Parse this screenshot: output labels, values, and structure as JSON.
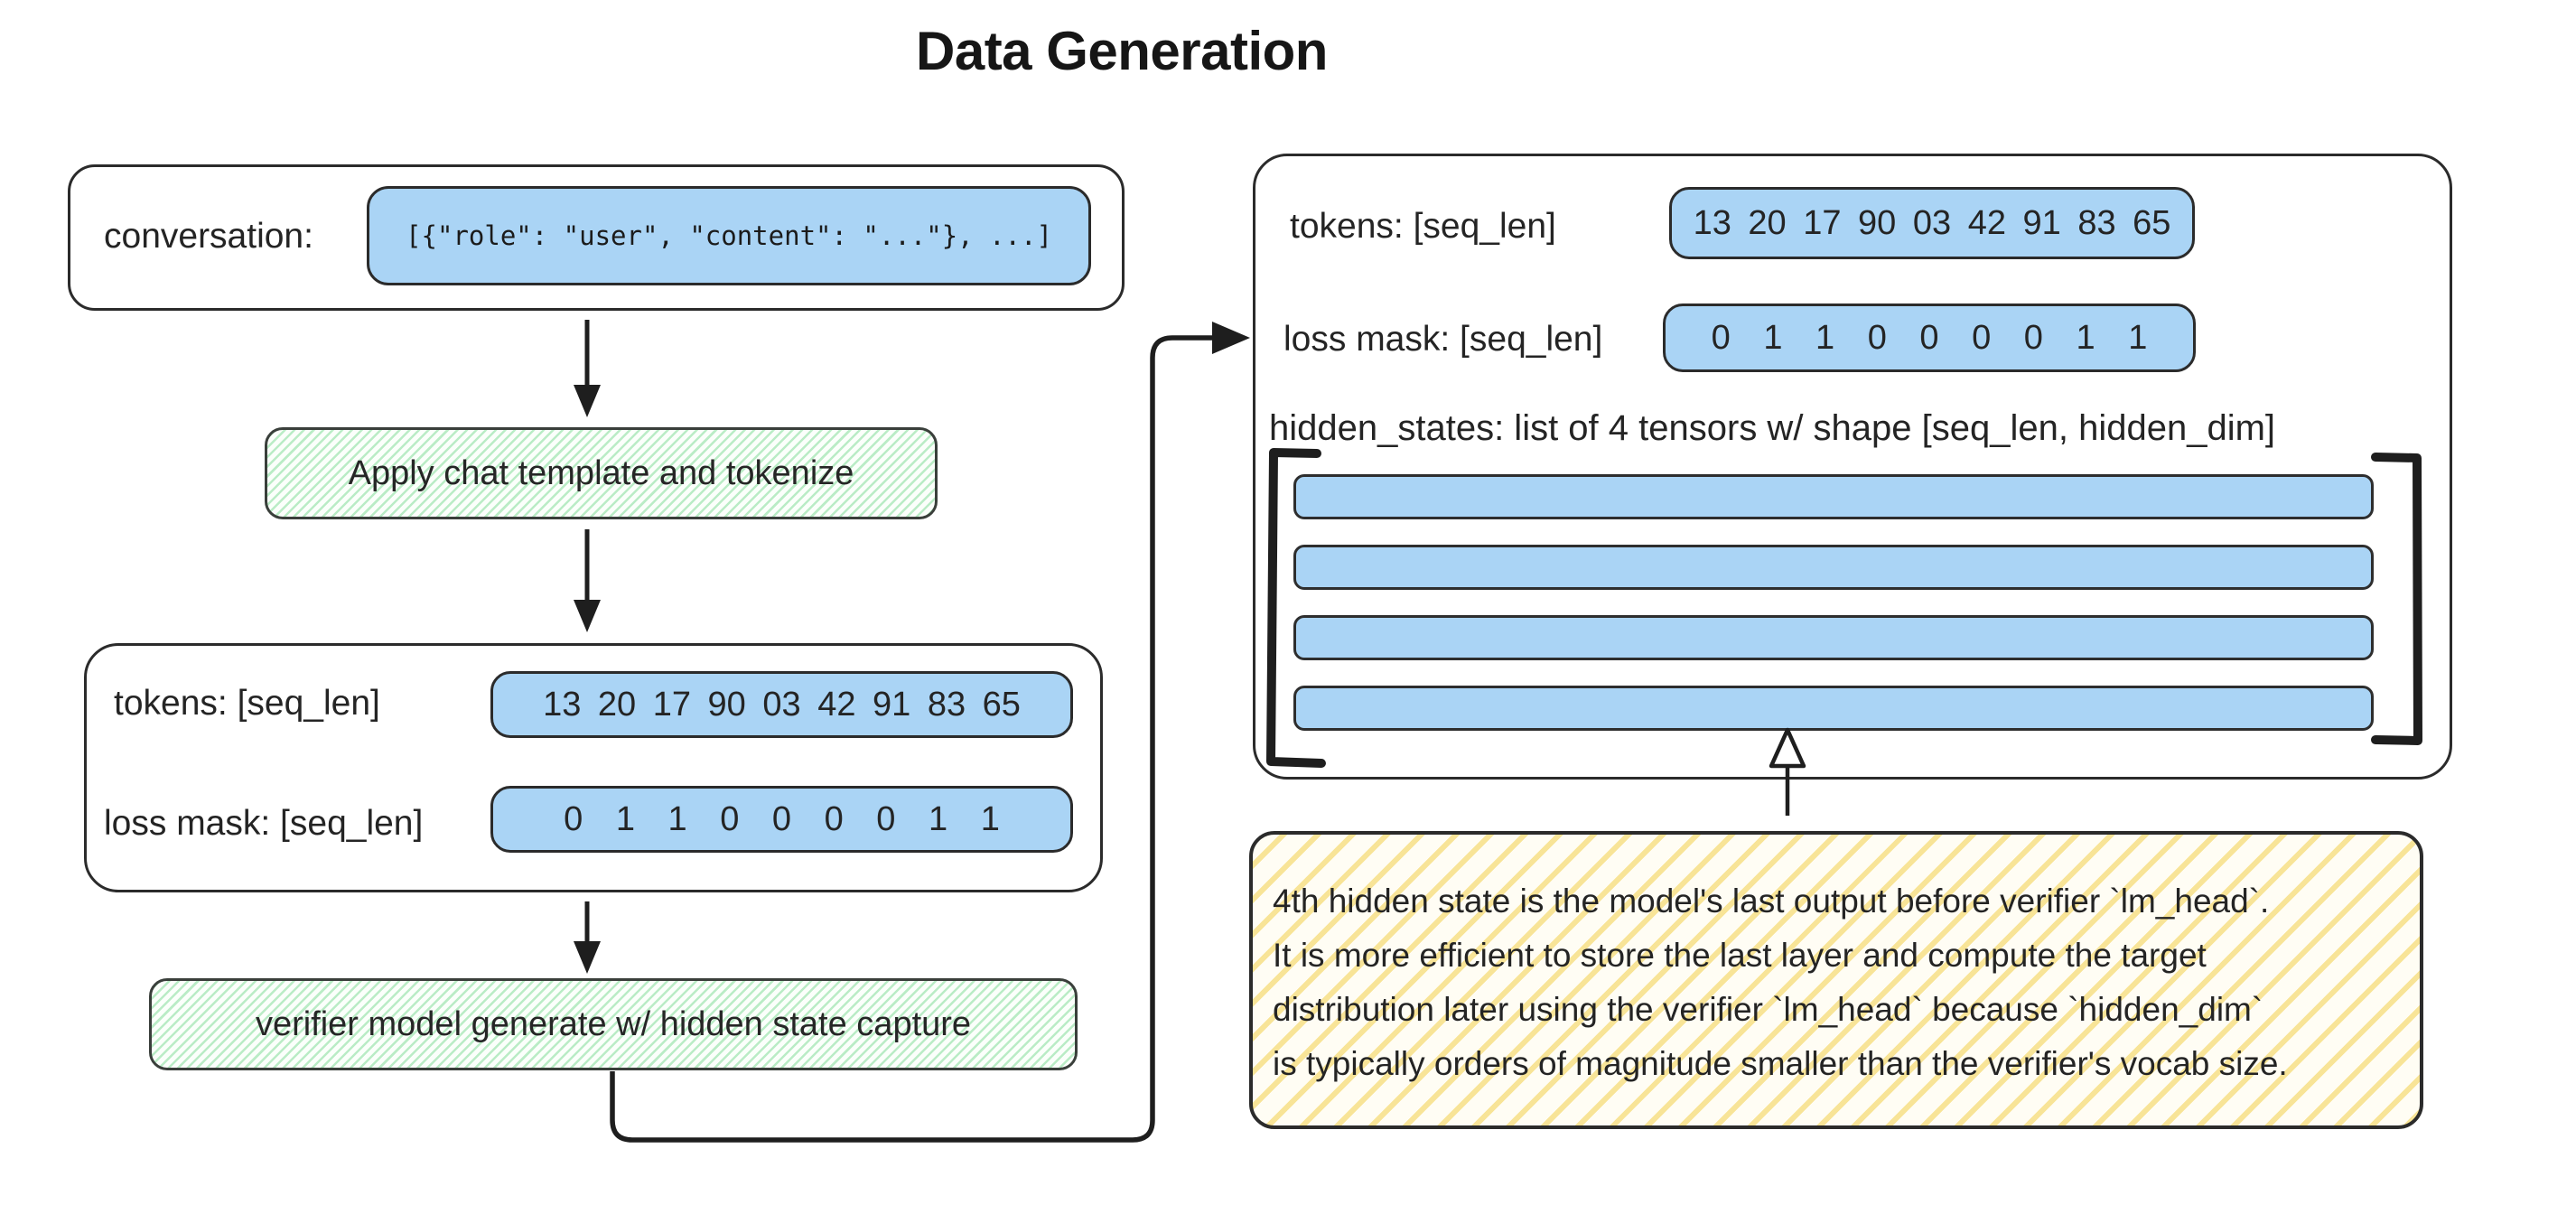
{
  "title": "Data Generation",
  "colors": {
    "ink": "#2b2b2b",
    "blue_fill": "#aad4f5",
    "green_hatch": "#b7ebc3",
    "yellow_hatch": "#f6de80"
  },
  "left_flow": {
    "conversation": {
      "label": "conversation:",
      "value": "[{\"role\": \"user\", \"content\": \"...\"}, ...]"
    },
    "step_tokenize": {
      "label": "Apply chat template and tokenize"
    },
    "tokenized": {
      "tokens_label": "tokens: [seq_len]",
      "tokens_values": "13 20 17 90 03 42 91 83 65",
      "loss_mask_label": "loss mask: [seq_len]",
      "loss_mask_values": "0 1 1 0 0 0 0 1 1"
    },
    "step_generate": {
      "label": "verifier model generate w/ hidden state capture"
    }
  },
  "output_panel": {
    "tokens_label": "tokens: [seq_len]",
    "tokens_values": "13 20 17 90 03 42 91 83 65",
    "loss_mask_label": "loss mask: [seq_len]",
    "loss_mask_values": "0 1 1 0 0 0 0 1 1",
    "hidden_states_label": "hidden_states: list of 4 tensors w/ shape [seq_len, hidden_dim]",
    "tensor_count": 4
  },
  "note": {
    "lines": [
      "4th hidden state is the model's last output before verifier `lm_head`.",
      "It is more efficient to store the last layer and compute the target",
      "distribution later using the verifier `lm_head` because `hidden_dim`",
      "is typically orders of magnitude smaller than the verifier's vocab size."
    ]
  }
}
